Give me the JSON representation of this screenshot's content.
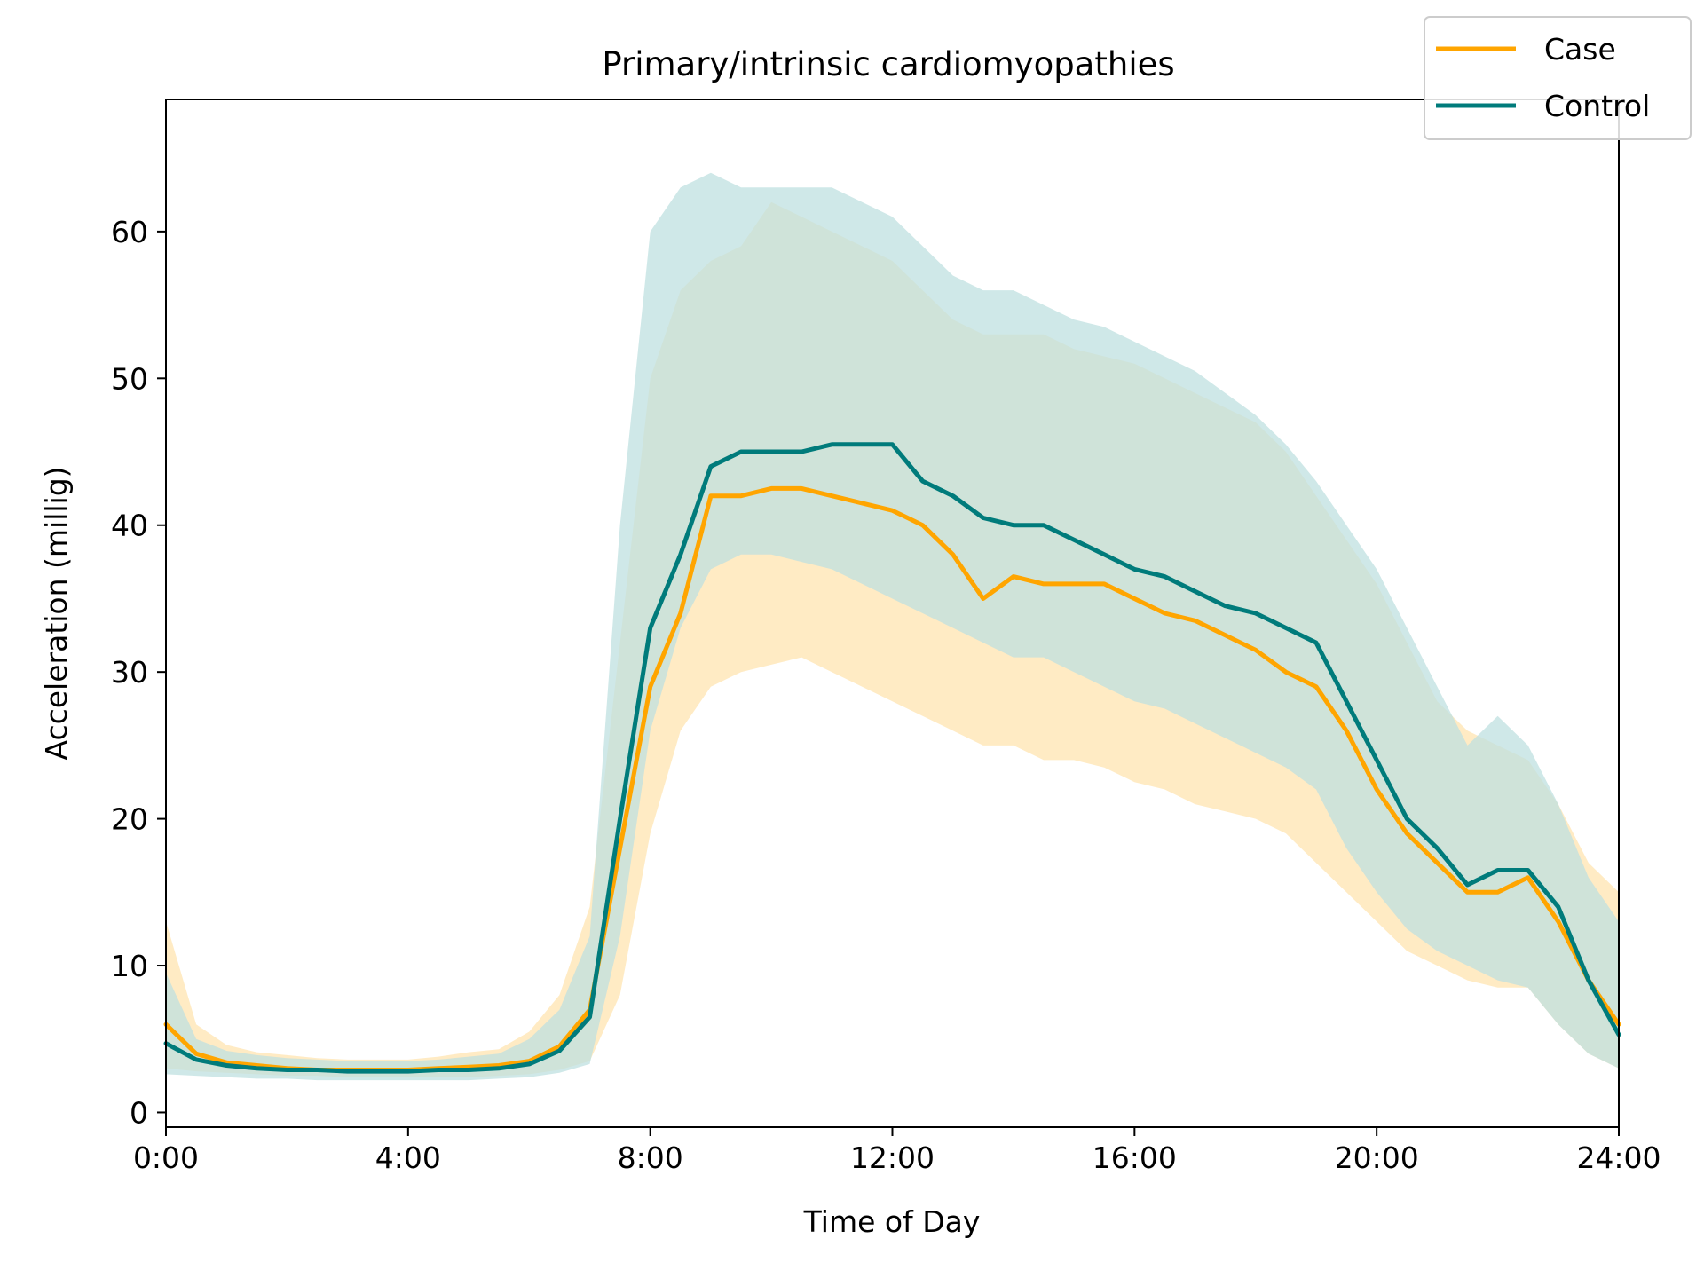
{
  "chart_data": {
    "type": "line",
    "title": "Primary/intrinsic cardiomyopathies",
    "xlabel": "Time of Day",
    "ylabel": "Acceleration (millig)",
    "xlim": [
      0,
      24
    ],
    "ylim": [
      -1,
      69
    ],
    "x_ticks": [
      {
        "value": 0,
        "label": "0:00"
      },
      {
        "value": 4,
        "label": "4:00"
      },
      {
        "value": 8,
        "label": "8:00"
      },
      {
        "value": 12,
        "label": "12:00"
      },
      {
        "value": 16,
        "label": "16:00"
      },
      {
        "value": 20,
        "label": "20:00"
      },
      {
        "value": 24,
        "label": "24:00"
      }
    ],
    "y_ticks": [
      {
        "value": 0,
        "label": "0"
      },
      {
        "value": 10,
        "label": "10"
      },
      {
        "value": 20,
        "label": "20"
      },
      {
        "value": 30,
        "label": "30"
      },
      {
        "value": 40,
        "label": "40"
      },
      {
        "value": 50,
        "label": "50"
      },
      {
        "value": 60,
        "label": "60"
      }
    ],
    "grid": false,
    "legend_position": "top-right",
    "series": [
      {
        "name": "Case",
        "color": "#FFA500",
        "band_color": "#FFE4B0",
        "x": [
          0,
          0.5,
          1,
          1.5,
          2,
          2.5,
          3,
          3.5,
          4,
          4.5,
          5,
          5.5,
          6,
          6.5,
          7,
          7.5,
          8,
          8.5,
          9,
          9.5,
          10,
          10.5,
          11,
          11.5,
          12,
          12.5,
          13,
          13.5,
          14,
          14.5,
          15,
          15.5,
          16,
          16.5,
          17,
          17.5,
          18,
          18.5,
          19,
          19.5,
          20,
          20.5,
          21,
          21.5,
          22,
          22.5,
          23,
          23.5,
          24
        ],
        "mean": [
          6,
          4,
          3.4,
          3.2,
          3,
          2.9,
          2.9,
          2.9,
          2.9,
          3,
          3.1,
          3.2,
          3.5,
          4.5,
          7,
          18,
          29,
          34,
          42,
          42,
          42.5,
          42.5,
          42,
          41.5,
          41,
          40,
          38,
          35,
          36.5,
          36,
          36,
          36,
          35,
          34,
          33.5,
          32.5,
          31.5,
          30,
          29,
          26,
          22,
          19,
          17,
          15,
          15,
          16,
          13,
          9,
          6
        ],
        "lower": [
          3,
          2.8,
          2.7,
          2.6,
          2.5,
          2.5,
          2.4,
          2.4,
          2.4,
          2.4,
          2.4,
          2.5,
          2.6,
          2.9,
          3.5,
          8,
          19,
          26,
          29,
          30,
          30.5,
          31,
          30,
          29,
          28,
          27,
          26,
          25,
          25,
          24,
          24,
          23.5,
          22.5,
          22,
          21,
          20.5,
          20,
          19,
          17,
          15,
          13,
          11,
          10,
          9,
          8.5,
          8.5,
          6,
          4,
          3
        ],
        "upper": [
          13,
          6,
          4.6,
          4.1,
          3.9,
          3.7,
          3.6,
          3.6,
          3.6,
          3.8,
          4.1,
          4.3,
          5.5,
          8,
          14,
          32,
          50,
          56,
          58,
          59,
          62,
          61,
          60,
          59,
          58,
          56,
          54,
          53,
          53,
          53,
          52,
          51.5,
          51,
          50,
          49,
          48,
          47,
          45,
          42,
          39,
          36,
          32,
          28,
          26,
          25,
          24,
          21,
          17,
          15
        ]
      },
      {
        "name": "Control",
        "color": "#007B7B",
        "band_color": "#BFE0E0",
        "x": [
          0,
          0.5,
          1,
          1.5,
          2,
          2.5,
          3,
          3.5,
          4,
          4.5,
          5,
          5.5,
          6,
          6.5,
          7,
          7.5,
          8,
          8.5,
          9,
          9.5,
          10,
          10.5,
          11,
          11.5,
          12,
          12.5,
          13,
          13.5,
          14,
          14.5,
          15,
          15.5,
          16,
          16.5,
          17,
          17.5,
          18,
          18.5,
          19,
          19.5,
          20,
          20.5,
          21,
          21.5,
          22,
          22.5,
          23,
          23.5,
          24
        ],
        "mean": [
          4.7,
          3.6,
          3.2,
          3,
          2.9,
          2.9,
          2.8,
          2.8,
          2.8,
          2.9,
          2.9,
          3,
          3.3,
          4.2,
          6.5,
          20,
          33,
          38,
          44,
          45,
          45,
          45,
          45.5,
          45.5,
          45.5,
          43,
          42,
          40.5,
          40,
          40,
          39,
          38,
          37,
          36.5,
          35.5,
          34.5,
          34,
          33,
          32,
          28,
          24,
          20,
          18,
          15.5,
          16.5,
          16.5,
          14,
          9,
          5.3
        ],
        "lower": [
          2.6,
          2.5,
          2.4,
          2.3,
          2.3,
          2.2,
          2.2,
          2.2,
          2.2,
          2.2,
          2.2,
          2.3,
          2.4,
          2.7,
          3.3,
          12,
          26,
          33,
          37,
          38,
          38,
          37.5,
          37,
          36,
          35,
          34,
          33,
          32,
          31,
          31,
          30,
          29,
          28,
          27.5,
          26.5,
          25.5,
          24.5,
          23.5,
          22,
          18,
          15,
          12.5,
          11,
          10,
          9,
          8.5,
          6,
          4,
          3
        ],
        "upper": [
          9.5,
          5,
          4.2,
          3.9,
          3.7,
          3.6,
          3.5,
          3.5,
          3.5,
          3.6,
          3.8,
          4,
          5,
          7,
          12,
          40,
          60,
          63,
          64,
          63,
          63,
          63,
          63,
          62,
          61,
          59,
          57,
          56,
          56,
          55,
          54,
          53.5,
          52.5,
          51.5,
          50.5,
          49,
          47.5,
          45.5,
          43,
          40,
          37,
          33,
          29,
          25,
          27,
          25,
          21,
          16,
          13
        ]
      }
    ]
  }
}
